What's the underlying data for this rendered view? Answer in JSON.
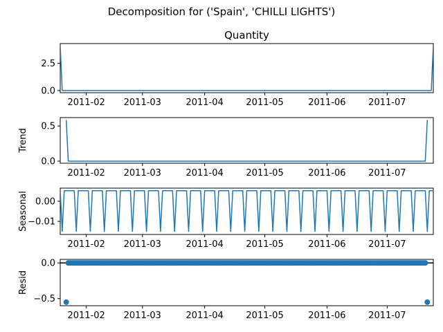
{
  "figure": {
    "suptitle": "Decomposition for ('Spain', 'CHILLI LIGHTS')",
    "line_color": "#1f77b4"
  },
  "chart_data": [
    {
      "type": "line",
      "panel": "observed",
      "title": "Quantity",
      "ylabel": "",
      "x_start": "2011-01-19",
      "x_end": "2011-07-24",
      "xlim": [
        "2011-01-19",
        "2011-07-24"
      ],
      "xticks": [
        "2011-02",
        "2011-03",
        "2011-04",
        "2011-05",
        "2011-06",
        "2011-07"
      ],
      "ylim": [
        -0.2,
        4.3
      ],
      "yticks": [
        0.0,
        2.5
      ],
      "ytick_labels": [
        "0.0",
        "2.5"
      ],
      "points": [
        {
          "x": "2011-01-19",
          "y": 4.1
        },
        {
          "x": "2011-01-20",
          "y": 0.0
        },
        {
          "x": "2011-07-23",
          "y": 0.0
        },
        {
          "x": "2011-07-24",
          "y": 4.1
        }
      ]
    },
    {
      "type": "line",
      "panel": "trend",
      "title": "",
      "ylabel": "Trend",
      "xlim": [
        "2011-01-19",
        "2011-07-24"
      ],
      "xticks": [
        "2011-02",
        "2011-03",
        "2011-04",
        "2011-05",
        "2011-06",
        "2011-07"
      ],
      "ylim": [
        -0.03,
        0.62
      ],
      "yticks": [
        0.0,
        0.5
      ],
      "ytick_labels": [
        "0.0",
        "0.5"
      ],
      "points": [
        {
          "x": "2011-01-22",
          "y": 0.586
        },
        {
          "x": "2011-01-23",
          "y": 0.0
        },
        {
          "x": "2011-07-20",
          "y": 0.0
        },
        {
          "x": "2011-07-21",
          "y": 0.586
        }
      ]
    },
    {
      "type": "line",
      "panel": "seasonal",
      "title": "",
      "ylabel": "Seasonal",
      "xlim": [
        "2011-01-19",
        "2011-07-24"
      ],
      "xticks": [
        "2011-02",
        "2011-03",
        "2011-04",
        "2011-05",
        "2011-06",
        "2011-07"
      ],
      "ylim": [
        -0.0165,
        0.0065
      ],
      "yticks": [
        0.0,
        -0.01
      ],
      "ytick_labels": [
        "0.00",
        "−0.01"
      ],
      "period_days": 7,
      "weekly_pattern": [
        0.0052,
        -0.015,
        0.0052,
        0.0052,
        0.0052,
        0.0052,
        0.0052
      ]
    },
    {
      "type": "scatter",
      "panel": "resid",
      "title": "",
      "ylabel": "Resid",
      "xlim": [
        "2011-01-19",
        "2011-07-24"
      ],
      "xticks": [
        "2011-02",
        "2011-03",
        "2011-04",
        "2011-05",
        "2011-06",
        "2011-07"
      ],
      "ylim": [
        -0.6,
        0.05
      ],
      "yticks": [
        0.0,
        -0.5
      ],
      "ytick_labels": [
        "0.0",
        "−0.5"
      ],
      "zero_line": true,
      "outliers": [
        {
          "x": "2011-01-22",
          "y": -0.55
        },
        {
          "x": "2011-07-21",
          "y": -0.55
        }
      ],
      "core_range": [
        "2011-01-23",
        "2011-07-20"
      ],
      "core_value": 0.0
    }
  ]
}
